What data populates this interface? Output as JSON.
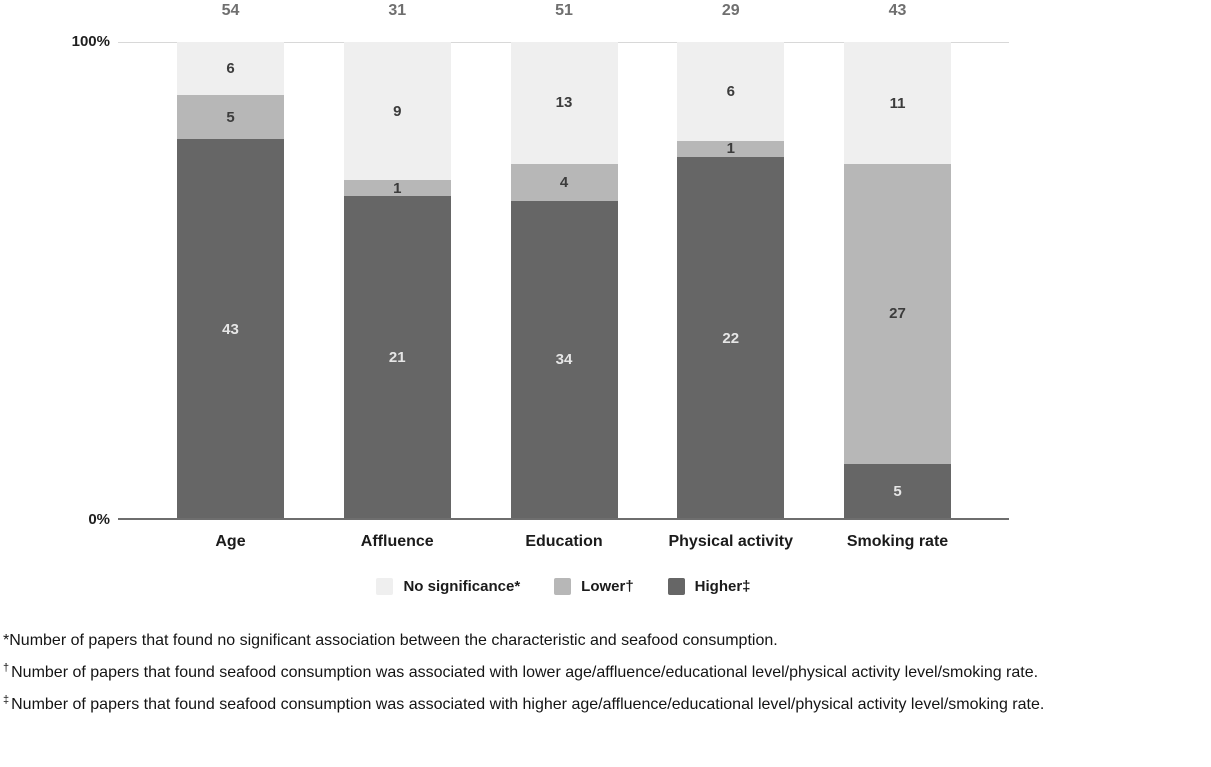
{
  "chart_data": {
    "type": "bar",
    "subtype": "stacked-100-percent",
    "title": "",
    "categories": [
      "Age",
      "Affluence",
      "Education",
      "Physical activity",
      "Smoking rate"
    ],
    "totals": [
      54,
      31,
      51,
      29,
      43
    ],
    "series": [
      {
        "name": "No significance*",
        "color": "#efefef",
        "label_color": "#3c3c3c",
        "values": [
          6,
          9,
          13,
          6,
          11
        ]
      },
      {
        "name": "Lower†",
        "color": "#b7b7b7",
        "label_color": "#3c3c3c",
        "values": [
          5,
          1,
          4,
          1,
          27
        ]
      },
      {
        "name": "Higher‡",
        "color": "#666666",
        "label_color": "#e6e6e6",
        "values": [
          43,
          21,
          34,
          22,
          5
        ]
      }
    ],
    "y_axis": {
      "top_label": "100%",
      "bottom_label": "0%",
      "range_percent": [
        0,
        100
      ]
    },
    "grid": "top-line-only",
    "legend_position": "bottom",
    "value_labels": "centered-in-segments",
    "total_labels": "above-bars"
  },
  "colors": {
    "background": "#ffffff",
    "gridline": "#d8d8d8",
    "axis_line": "#6e6e6e",
    "totals_text": "#6f6f6f",
    "axis_text": "#1f1f1f",
    "category_text": "#1b1b1b",
    "footnote_text": "#141414"
  },
  "footnotes": [
    {
      "marker": "*",
      "superscript": false,
      "text": "Number of papers that found no significant association between the characteristic and seafood consumption."
    },
    {
      "marker": "†",
      "superscript": true,
      "text": "Number of papers that found seafood consumption was associated with lower age/affluence/educational level/physical activity level/smoking rate."
    },
    {
      "marker": "‡",
      "superscript": true,
      "text": "Number of papers that found seafood consumption was associated with higher age/affluence/educational level/physical activity level/smoking rate."
    }
  ]
}
